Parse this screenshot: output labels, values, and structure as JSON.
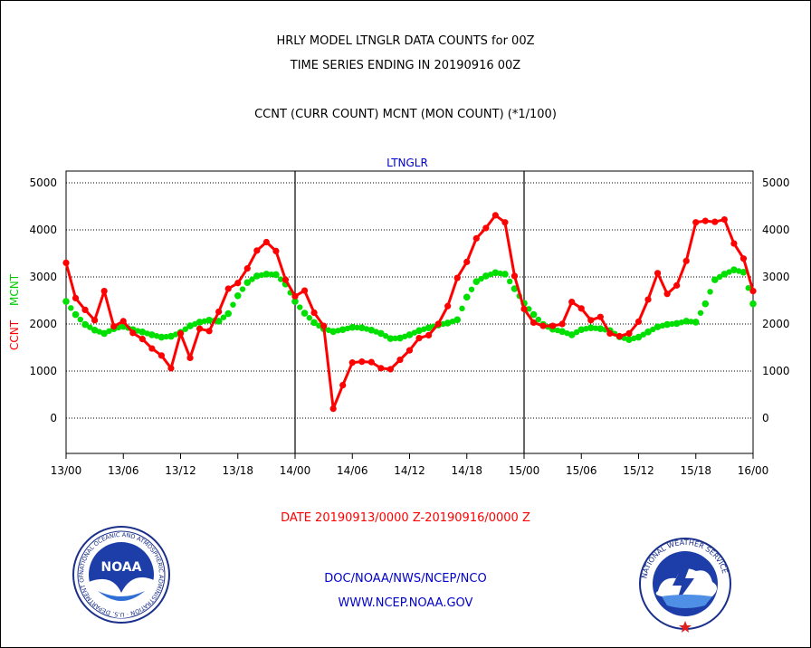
{
  "header": {
    "title": "HRLY MODEL LTNGLR DATA COUNTS for 00Z",
    "subtitle": "TIME SERIES ENDING IN 20190916 00Z",
    "description": "CCNT (CURR COUNT) MCNT (MON COUNT) (*1/100)"
  },
  "footer": {
    "date_range": "DATE 20190913/0000 Z-20190916/0000 Z",
    "org_line": "DOC/NOAA/NWS/NCEP/NCO",
    "website": "WWW.NCEP.NOAA.GOV"
  },
  "logos": {
    "noaa_text": "NOAA",
    "noaa_ring_text": "NATIONAL OCEANIC AND ATMOSPHERIC ADMINISTRATION · U.S. DEPARTMENT OF COMMERCE",
    "nws_ring_text": "NATIONAL WEATHER SERVICE"
  },
  "colors": {
    "ccnt": "#ff0000",
    "mcnt": "#00e000",
    "label_blue": "#0000cc"
  },
  "chart_data": {
    "type": "line",
    "title": "LTNGLR",
    "ylabel_ccnt": "CCNT",
    "ylabel_mcnt": "MCNT",
    "ylim": [
      -750,
      5250
    ],
    "yticks": [
      0,
      1000,
      2000,
      3000,
      4000,
      5000
    ],
    "xlim": [
      0,
      72
    ],
    "xticks": [
      0,
      6,
      12,
      18,
      24,
      30,
      36,
      42,
      48,
      54,
      60,
      66,
      72
    ],
    "xtick_labels": [
      "13/00",
      "13/06",
      "13/12",
      "13/18",
      "14/00",
      "14/06",
      "14/12",
      "14/18",
      "15/00",
      "15/06",
      "15/12",
      "15/18",
      "16/00"
    ],
    "grid": true,
    "series": [
      {
        "name": "CCNT",
        "x": [
          0,
          1,
          2,
          3,
          4,
          5,
          6,
          7,
          8,
          9,
          10,
          11,
          12,
          13,
          14,
          15,
          16,
          17,
          18,
          19,
          20,
          21,
          22,
          23,
          24,
          25,
          26,
          27,
          28,
          29,
          30,
          31,
          32,
          33,
          34,
          35,
          36,
          37,
          38,
          39,
          40,
          41,
          42,
          43,
          44,
          45,
          46,
          47,
          48,
          49,
          50,
          51,
          52,
          53,
          54,
          55,
          56,
          57,
          58,
          59,
          60,
          61,
          62,
          63,
          64,
          65,
          66,
          67,
          68,
          69,
          70,
          71,
          72
        ],
        "values": [
          3300,
          2550,
          2300,
          2080,
          2700,
          1950,
          2060,
          1810,
          1680,
          1480,
          1330,
          1060,
          1800,
          1280,
          1900,
          1850,
          2260,
          2750,
          2870,
          3180,
          3560,
          3740,
          3550,
          2940,
          2590,
          2710,
          2240,
          1960,
          200,
          700,
          1180,
          1200,
          1190,
          1060,
          1040,
          1240,
          1440,
          1700,
          1760,
          2000,
          2380,
          2980,
          3320,
          3820,
          4040,
          4310,
          4160,
          3020,
          2320,
          2030,
          1960,
          1960,
          2000,
          2470,
          2330,
          2080,
          2150,
          1800,
          1740,
          1800,
          2050,
          2520,
          3080,
          2640,
          2820,
          3340,
          4160,
          4190,
          4170,
          4220,
          3710,
          3390,
          2700
        ]
      },
      {
        "name": "MCNT",
        "x": [
          0,
          1,
          2,
          3,
          4,
          5,
          6,
          7,
          8,
          9,
          10,
          11,
          12,
          13,
          14,
          15,
          16,
          17,
          18,
          19,
          20,
          21,
          22,
          23,
          24,
          25,
          26,
          27,
          28,
          29,
          30,
          31,
          32,
          33,
          34,
          35,
          36,
          37,
          38,
          39,
          40,
          41,
          42,
          43,
          44,
          45,
          46,
          47,
          48,
          49,
          50,
          51,
          52,
          53,
          54,
          55,
          56,
          57,
          58,
          59,
          60,
          61,
          62,
          63,
          64,
          65,
          66,
          67,
          68,
          69,
          70,
          71,
          72
        ],
        "values": [
          2480,
          2200,
          1990,
          1870,
          1800,
          1900,
          1950,
          1880,
          1830,
          1770,
          1720,
          1740,
          1820,
          1960,
          2040,
          2080,
          2060,
          2220,
          2600,
          2880,
          3020,
          3060,
          3050,
          2850,
          2480,
          2230,
          2030,
          1900,
          1840,
          1880,
          1930,
          1920,
          1870,
          1800,
          1690,
          1700,
          1770,
          1860,
          1920,
          1980,
          2020,
          2090,
          2570,
          2900,
          3020,
          3090,
          3060,
          2750,
          2440,
          2200,
          1990,
          1890,
          1840,
          1770,
          1880,
          1920,
          1900,
          1860,
          1730,
          1670,
          1720,
          1830,
          1940,
          1990,
          2010,
          2060,
          2040,
          2430,
          2940,
          3060,
          3150,
          3100,
          2430
        ]
      }
    ]
  }
}
